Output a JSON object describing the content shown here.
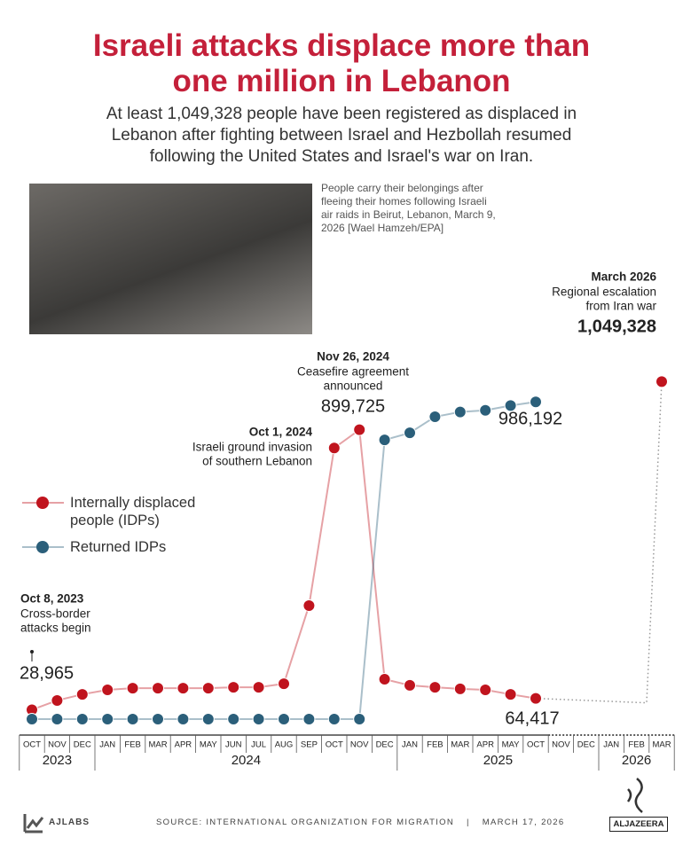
{
  "chart_data": {
    "type": "line",
    "title": "Israeli attacks displace more than one million in Lebanon",
    "subtitle": "At least 1,049,328 people have been registered as displaced in Lebanon after fighting between Israel and Hezbollah resumed following the United States and Israel's war on Iran.",
    "photo_caption": "People carry their belongings after fleeing their homes following Israeli air raids in Beirut, Lebanon, March 9, 2026 [Wael Hamzeh/EPA]",
    "categories": [
      "OCT",
      "NOV",
      "DEC",
      "JAN",
      "FEB",
      "MAR",
      "APR",
      "MAY",
      "JUN",
      "JUL",
      "AUG",
      "SEP",
      "OCT",
      "NOV",
      "DEC",
      "JAN",
      "FEB",
      "MAR",
      "APR",
      "MAY",
      "OCT",
      "NOV",
      "DEC",
      "JAN",
      "FEB",
      "MAR"
    ],
    "years": [
      "2023",
      "2024",
      "2025",
      "2026"
    ],
    "ylim": [
      0,
      1100000
    ],
    "series": [
      {
        "name": "Internally displaced people (IDPs)",
        "color": "#c0141e",
        "values": [
          28965,
          58000,
          77000,
          91000,
          96000,
          96000,
          96000,
          96000,
          99000,
          99000,
          110000,
          353000,
          843000,
          899725,
          124000,
          105000,
          99000,
          94000,
          91000,
          77000,
          64417,
          null,
          null,
          null,
          null,
          1049328
        ],
        "value_labels": [
          "28,965",
          null,
          null,
          null,
          null,
          null,
          null,
          null,
          null,
          null,
          null,
          null,
          null,
          "899,725",
          null,
          null,
          null,
          null,
          null,
          null,
          "64,417",
          null,
          null,
          null,
          null,
          "1,049,328"
        ]
      },
      {
        "name": "Returned IDPs",
        "color": "#2b5f7a",
        "values": [
          0,
          0,
          0,
          0,
          0,
          0,
          0,
          0,
          0,
          0,
          0,
          0,
          0,
          0,
          868000,
          890000,
          940000,
          955000,
          960000,
          975000,
          986192,
          null,
          null,
          null,
          null,
          null
        ],
        "value_labels": [
          null,
          null,
          null,
          null,
          null,
          null,
          null,
          null,
          null,
          null,
          null,
          null,
          null,
          null,
          null,
          null,
          null,
          null,
          null,
          null,
          "986,192",
          null,
          null,
          null,
          null,
          null
        ]
      }
    ],
    "annotations": [
      {
        "title": "Oct 8, 2023",
        "lines": [
          "Cross-border",
          "attacks begin"
        ]
      },
      {
        "title": "Oct 1, 2024",
        "lines": [
          "Israeli ground invasion",
          "of southern Lebanon"
        ]
      },
      {
        "title": "Nov 26, 2024",
        "lines": [
          "Ceasefire agreement",
          "announced"
        ]
      },
      {
        "title": "March 2026",
        "lines": [
          "Regional escalation",
          "from Iran war"
        ]
      }
    ]
  },
  "footer": {
    "lab": "AJLABS",
    "source": "SOURCE: INTERNATIONAL ORGANIZATION FOR MIGRATION",
    "separator": "|",
    "date": "MARCH 17, 2026",
    "brand": "ALJAZEERA"
  }
}
